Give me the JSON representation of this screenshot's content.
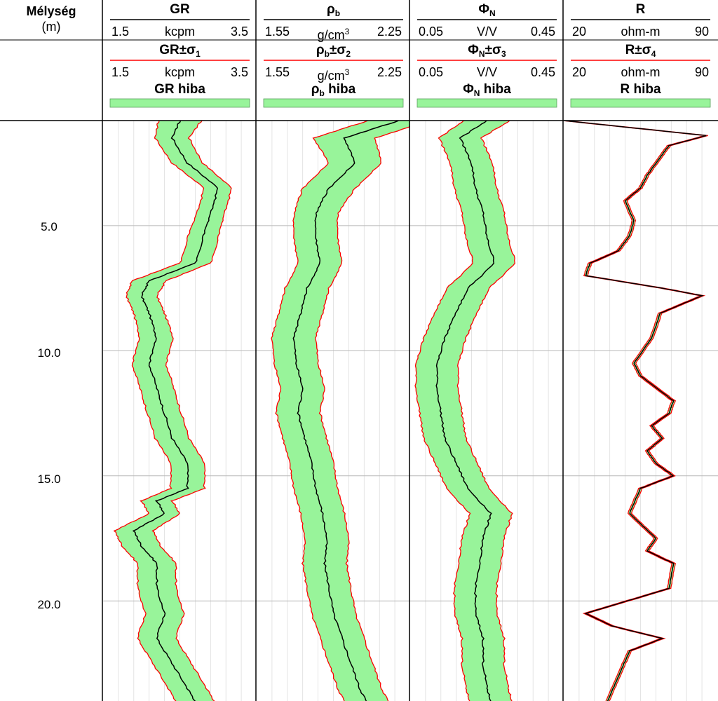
{
  "depth_column": {
    "title": "Mélység",
    "unit": "(m)",
    "tick_labels": [
      "5.0",
      "10.0",
      "15.0",
      "20.0"
    ]
  },
  "tracks": [
    {
      "title": "GR",
      "title_sym": "",
      "title_sub": "",
      "unc_title": "GR",
      "unc_sigma": "±σ",
      "unc_sub": "1",
      "err_title": "GR",
      "err_sub": "",
      "err_word": "hiba",
      "scale_min": "1.5",
      "scale_unit": "kcpm",
      "scale_unit_sup": "",
      "scale_max": "3.5"
    },
    {
      "title": "ρ",
      "title_sym": "",
      "title_sub": "b",
      "unc_title": "ρ",
      "unc_sigma": "±σ",
      "unc_sub": "2",
      "unc_title_sub": "b",
      "err_title": "ρ",
      "err_sub": "b",
      "err_word": "hiba",
      "scale_min": "1.55",
      "scale_unit": "g/cm",
      "scale_unit_sup": "3",
      "scale_max": "2.25"
    },
    {
      "title": "Φ",
      "title_sym": "",
      "title_sub": "N",
      "unc_title": "Φ",
      "unc_sigma": "±σ",
      "unc_sub": "3",
      "unc_title_sub": "N",
      "err_title": "Φ",
      "err_sub": "N",
      "err_word": "hiba",
      "scale_min": "0.05",
      "scale_unit": "V/V",
      "scale_unit_sup": "",
      "scale_max": "0.45"
    },
    {
      "title": "R",
      "title_sym": "",
      "title_sub": "",
      "unc_title": "R",
      "unc_sigma": "±σ",
      "unc_sub": "4",
      "err_title": "R",
      "err_sub": "",
      "err_word": "hiba",
      "scale_min": "20",
      "scale_unit": "ohm-m",
      "scale_unit_sup": "",
      "scale_max": "90"
    }
  ],
  "colors": {
    "fill": "#98f49a",
    "bound": "#ff0000",
    "curve": "#000000",
    "grid": "#b8b8b8"
  },
  "chart_data": [
    {
      "type": "line",
      "name_track": "GR",
      "x_range": [
        1.5,
        3.5
      ],
      "y_range": [
        0.8,
        24.0
      ],
      "y_ticks": [
        5,
        10,
        15,
        20
      ],
      "depth": [
        0.8,
        1.5,
        2.5,
        3.5,
        4.5,
        5.5,
        6.5,
        7.2,
        7.8,
        8.5,
        9.5,
        10.5,
        11.5,
        12.5,
        13.5,
        14.5,
        15.5,
        16.0,
        16.5,
        17.2,
        17.8,
        18.5,
        19.5,
        20.5,
        21.5,
        22.5,
        23.5,
        24.0
      ],
      "value": [
        2.5,
        2.4,
        2.6,
        3.0,
        2.9,
        2.8,
        2.7,
        2.1,
        2.0,
        2.1,
        2.2,
        2.1,
        2.2,
        2.3,
        2.4,
        2.6,
        2.6,
        2.2,
        2.3,
        1.9,
        2.0,
        2.2,
        2.2,
        2.3,
        2.2,
        2.4,
        2.6,
        2.7
      ],
      "half_width": [
        0.28,
        0.22,
        0.2,
        0.18,
        0.18,
        0.2,
        0.2,
        0.22,
        0.2,
        0.2,
        0.22,
        0.22,
        0.22,
        0.22,
        0.22,
        0.22,
        0.22,
        0.2,
        0.2,
        0.25,
        0.25,
        0.25,
        0.25,
        0.25,
        0.25,
        0.25,
        0.25,
        0.25
      ]
    },
    {
      "type": "line",
      "name_track": "ρb",
      "x_range": [
        1.55,
        2.25
      ],
      "y_range": [
        0.8,
        24.0
      ],
      "y_ticks": [
        5,
        10,
        15,
        20
      ],
      "depth": [
        0.8,
        1.5,
        2.5,
        3.5,
        4.5,
        5.5,
        6.5,
        7.5,
        8.5,
        9.5,
        10.5,
        11.5,
        12.5,
        13.5,
        14.5,
        15.5,
        16.5,
        17.5,
        18.5,
        19.5,
        20.5,
        21.5,
        22.5,
        23.5,
        24.0
      ],
      "value": [
        2.2,
        1.95,
        2.0,
        1.88,
        1.82,
        1.82,
        1.84,
        1.78,
        1.75,
        1.72,
        1.73,
        1.76,
        1.74,
        1.77,
        1.8,
        1.82,
        1.85,
        1.87,
        1.86,
        1.88,
        1.9,
        1.94,
        1.98,
        2.02,
        2.05
      ],
      "half_width": [
        0.14,
        0.14,
        0.12,
        0.12,
        0.1,
        0.1,
        0.1,
        0.1,
        0.1,
        0.1,
        0.1,
        0.1,
        0.1,
        0.1,
        0.1,
        0.1,
        0.1,
        0.1,
        0.1,
        0.1,
        0.1,
        0.1,
        0.1,
        0.1,
        0.1
      ]
    },
    {
      "type": "line",
      "name_track": "ΦN",
      "x_range": [
        0.05,
        0.45
      ],
      "y_range": [
        0.8,
        24.0
      ],
      "y_ticks": [
        5,
        10,
        15,
        20
      ],
      "depth": [
        0.8,
        1.5,
        2.5,
        3.5,
        4.5,
        5.5,
        6.5,
        7.5,
        8.5,
        9.5,
        10.5,
        11.5,
        12.5,
        13.5,
        14.5,
        15.5,
        16.5,
        17.5,
        18.5,
        19.5,
        20.5,
        21.5,
        22.5,
        23.5,
        24.0
      ],
      "value": [
        0.25,
        0.18,
        0.21,
        0.22,
        0.24,
        0.25,
        0.27,
        0.2,
        0.17,
        0.14,
        0.12,
        0.12,
        0.13,
        0.14,
        0.17,
        0.2,
        0.26,
        0.24,
        0.23,
        0.22,
        0.22,
        0.24,
        0.24,
        0.25,
        0.26
      ],
      "half_width": [
        0.06,
        0.055,
        0.055,
        0.055,
        0.055,
        0.055,
        0.055,
        0.055,
        0.055,
        0.055,
        0.055,
        0.055,
        0.055,
        0.055,
        0.055,
        0.055,
        0.055,
        0.055,
        0.055,
        0.055,
        0.055,
        0.055,
        0.055,
        0.055,
        0.055
      ]
    },
    {
      "type": "line",
      "name_track": "R",
      "x_range": [
        20,
        90
      ],
      "y_range": [
        0.8,
        24.0
      ],
      "y_ticks": [
        5,
        10,
        15,
        20
      ],
      "depth": [
        0.8,
        1.4,
        1.8,
        2.5,
        3.0,
        3.5,
        4.0,
        4.8,
        5.4,
        6.0,
        6.5,
        7.0,
        7.5,
        7.8,
        8.5,
        9.5,
        10.5,
        11.0,
        12.0,
        12.5,
        13.0,
        13.5,
        14.0,
        14.5,
        15.0,
        15.5,
        16.5,
        17.5,
        18.0,
        18.5,
        19.5,
        20.5,
        21.0,
        21.5,
        22.0,
        23.0,
        24.0
      ],
      "value": [
        20,
        85,
        68,
        62,
        58,
        55,
        48,
        52,
        50,
        45,
        32,
        30,
        65,
        83,
        64,
        60,
        52,
        55,
        70,
        68,
        60,
        65,
        58,
        62,
        70,
        55,
        50,
        62,
        58,
        70,
        68,
        30,
        42,
        65,
        50,
        45,
        40
      ],
      "half_width": [
        0.8,
        0.8,
        0.8,
        0.8,
        0.8,
        0.8,
        0.8,
        0.8,
        0.8,
        0.8,
        0.8,
        0.8,
        0.8,
        0.8,
        0.8,
        0.8,
        0.8,
        0.8,
        0.8,
        0.8,
        0.8,
        0.8,
        0.8,
        0.8,
        0.8,
        0.8,
        0.8,
        0.8,
        0.8,
        0.8,
        0.8,
        0.8,
        0.8,
        0.8,
        0.8,
        0.8,
        0.8
      ]
    }
  ]
}
